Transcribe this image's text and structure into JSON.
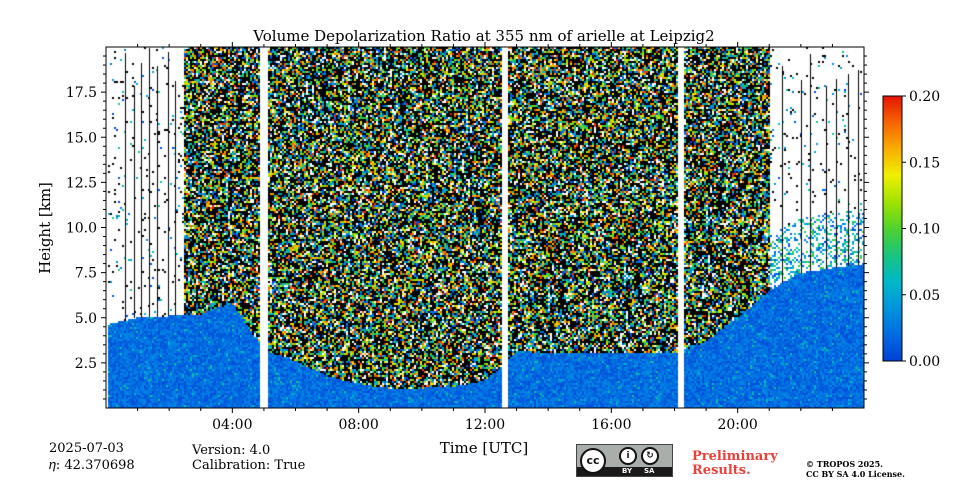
{
  "chart_data": {
    "type": "heatmap",
    "title": "Volume Depolarization Ratio at 355 nm of arielle at Leipzig2",
    "xlabel": "Time [UTC]",
    "ylabel": "Height [km]",
    "xlim_hours": [
      0,
      24
    ],
    "ylim_km": [
      0,
      20
    ],
    "x_ticks": [
      {
        "value": 4,
        "label": "04:00"
      },
      {
        "value": 8,
        "label": "08:00"
      },
      {
        "value": 12,
        "label": "12:00"
      },
      {
        "value": 16,
        "label": "16:00"
      },
      {
        "value": 20,
        "label": "20:00"
      }
    ],
    "y_ticks": [
      {
        "value": 2.5,
        "label": "2.5"
      },
      {
        "value": 5.0,
        "label": "5.0"
      },
      {
        "value": 7.5,
        "label": "7.5"
      },
      {
        "value": 10.0,
        "label": "10.0"
      },
      {
        "value": 12.5,
        "label": "12.5"
      },
      {
        "value": 15.0,
        "label": "15.0"
      },
      {
        "value": 17.5,
        "label": "17.5"
      }
    ],
    "colorbar": {
      "range": [
        0.0,
        0.2
      ],
      "ticks": [
        {
          "value": 0.0,
          "label": "0.00"
        },
        {
          "value": 0.05,
          "label": "0.05"
        },
        {
          "value": 0.1,
          "label": "0.10"
        },
        {
          "value": 0.15,
          "label": "0.15"
        },
        {
          "value": 0.2,
          "label": "0.20"
        }
      ]
    },
    "data_gaps_hours": [
      5.0,
      12.65,
      18.2
    ],
    "boundary_layer_top_km": [
      [
        0.0,
        4.6
      ],
      [
        1.0,
        5.0
      ],
      [
        2.0,
        5.1
      ],
      [
        3.0,
        5.2
      ],
      [
        4.0,
        5.8
      ],
      [
        5.0,
        3.2
      ],
      [
        6.0,
        2.6
      ],
      [
        7.0,
        1.8
      ],
      [
        8.0,
        1.3
      ],
      [
        9.0,
        1.1
      ],
      [
        10.0,
        1.1
      ],
      [
        11.0,
        1.2
      ],
      [
        12.0,
        1.5
      ],
      [
        12.65,
        2.5
      ],
      [
        13.0,
        3.2
      ],
      [
        14.0,
        3.0
      ],
      [
        16.0,
        3.0
      ],
      [
        18.0,
        3.0
      ],
      [
        19.0,
        3.7
      ],
      [
        20.0,
        5.0
      ],
      [
        21.0,
        6.5
      ],
      [
        22.0,
        7.5
      ],
      [
        24.0,
        8.0
      ]
    ],
    "dense_signal_hours": [
      2.5,
      21.0
    ]
  },
  "footer": {
    "date": "2025-07-03",
    "eta": "𝜂: 42.370698",
    "version": "Version: 4.0",
    "calibration": "Calibration: True",
    "preliminary_line1": "Preliminary",
    "preliminary_line2": "Results.",
    "copyright_line1": "© TROPOS 2025.",
    "copyright_line2": "CC BY SA 4.0 License.",
    "license_badge": "cc-by-sa",
    "license_labels": [
      "BY",
      "SA"
    ]
  },
  "colors": {
    "missing": "#000000",
    "low": "#0060d0",
    "high": "#ff2000",
    "preliminary": "#e8413a"
  }
}
